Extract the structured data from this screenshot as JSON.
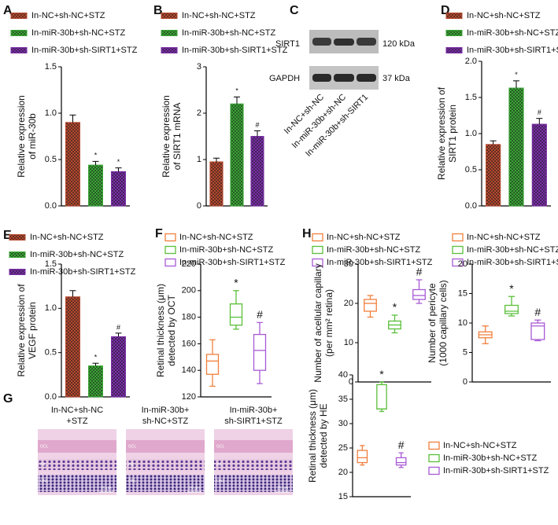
{
  "chart_data": [
    {
      "type": "bar",
      "panel": "A",
      "ylabel": [
        "Relative expression",
        "of miR-30b"
      ],
      "ylim": [
        0,
        1.5
      ],
      "yticks": [
        {
          "value": 0,
          "label": "0.0"
        },
        0.5,
        {
          "value": 1,
          "label": "1.0"
        },
        1.5
      ],
      "series": [
        {
          "name": "In-NC+sh-NC+STZ",
          "color": "#b5492f",
          "values": [
            0.9
          ],
          "errors": [
            0.08
          ]
        },
        {
          "name": "In-miR-30b+sh-NC+STZ",
          "color": "#3aa635",
          "values": [
            0.44
          ],
          "errors": [
            0.04
          ],
          "annotation": "*"
        },
        {
          "name": "In-miR-30b+sh-SIRT1+STZ",
          "color": "#7a2ea8",
          "values": [
            0.37
          ],
          "errors": [
            0.04
          ],
          "annotation": "*"
        }
      ]
    },
    {
      "type": "bar",
      "panel": "B",
      "ylabel": [
        "Relative expression",
        "of SIRT1 mRNA"
      ],
      "ylim": [
        0,
        3
      ],
      "yticks": [
        0,
        1,
        2,
        3
      ],
      "series": [
        {
          "name": "In-NC+sh-NC+STZ",
          "color": "#b5492f",
          "values": [
            0.95
          ],
          "errors": [
            0.08
          ]
        },
        {
          "name": "In-miR-30b+sh-NC+STZ",
          "color": "#3aa635",
          "values": [
            2.2
          ],
          "errors": [
            0.15
          ],
          "annotation": "*"
        },
        {
          "name": "In-miR-30b+sh-SIRT1+STZ",
          "color": "#7a2ea8",
          "values": [
            1.5
          ],
          "errors": [
            0.12
          ],
          "annotation": "#"
        }
      ]
    },
    {
      "type": "bar",
      "panel": "D",
      "ylabel": [
        "Relative expression of",
        "SIRT1 protein"
      ],
      "ylim": [
        0,
        2
      ],
      "yticks": [
        {
          "value": 0,
          "label": "0.0"
        },
        0.5,
        {
          "value": 1,
          "label": "1.0"
        },
        1.5,
        {
          "value": 2,
          "label": "2.0"
        }
      ],
      "series": [
        {
          "name": "In-NC+sh-NC+STZ",
          "color": "#b5492f",
          "values": [
            0.85
          ],
          "errors": [
            0.05
          ]
        },
        {
          "name": "In-miR-30b+sh-NC+STZ",
          "color": "#3aa635",
          "values": [
            1.63
          ],
          "errors": [
            0.1
          ],
          "annotation": "*"
        },
        {
          "name": "In-miR-30b+sh-SIRT1+STZ",
          "color": "#7a2ea8",
          "values": [
            1.13
          ],
          "errors": [
            0.08
          ],
          "annotation": "#"
        }
      ]
    },
    {
      "type": "bar",
      "panel": "E",
      "ylabel": [
        "Relative expression of",
        "VEGF protein"
      ],
      "ylim": [
        0,
        1.5
      ],
      "yticks": [
        {
          "value": 0,
          "label": "0.0"
        },
        0.5,
        {
          "value": 1,
          "label": "1.0"
        },
        1.5
      ],
      "series": [
        {
          "name": "In-NC+sh-NC+STZ",
          "color": "#b5492f",
          "values": [
            1.13
          ],
          "errors": [
            0.07
          ]
        },
        {
          "name": "In-miR-30b+sh-NC+STZ",
          "color": "#3aa635",
          "values": [
            0.35
          ],
          "errors": [
            0.03
          ],
          "annotation": "*"
        },
        {
          "name": "In-miR-30b+sh-SIRT1+STZ",
          "color": "#7a2ea8",
          "values": [
            0.68
          ],
          "errors": [
            0.04
          ],
          "annotation": "#"
        }
      ]
    },
    {
      "type": "box",
      "panel": "F",
      "ylabel": [
        "Retinal thickness (μm)",
        "detected by OCT"
      ],
      "ylim": [
        120,
        220
      ],
      "yticks": [
        120,
        140,
        160,
        180,
        200,
        220
      ],
      "series": [
        {
          "name": "In-NC+sh-NC+STZ",
          "color": "#f07f3c",
          "whisker_low": 128,
          "q1": 137,
          "median": 147,
          "q3": 152,
          "whisker_high": 163
        },
        {
          "name": "In-miR-30b+sh-NC+STZ",
          "color": "#5bbf3a",
          "whisker_low": 171,
          "q1": 174,
          "median": 180,
          "q3": 190,
          "whisker_high": 200,
          "annotation": "*"
        },
        {
          "name": "In-miR-30b+sh-SIRT1+STZ",
          "color": "#a85ad6",
          "whisker_low": 130,
          "q1": 140,
          "median": 155,
          "q3": 167,
          "whisker_high": 176,
          "annotation": "#"
        }
      ]
    },
    {
      "type": "box",
      "panel": "H",
      "ylabel": [
        "Number of acellular capillary",
        "(per mm² retina)"
      ],
      "ylim": [
        0,
        30
      ],
      "yticks": [
        0,
        10,
        20,
        30
      ],
      "series": [
        {
          "name": "In-NC+sh-NC+STZ",
          "color": "#f07f3c",
          "whisker_low": 16.5,
          "q1": 18,
          "median": 20,
          "q3": 21,
          "whisker_high": 22
        },
        {
          "name": "In-miR-30b+sh-NC+STZ",
          "color": "#5bbf3a",
          "whisker_low": 12.5,
          "q1": 13.5,
          "median": 14.5,
          "q3": 15.5,
          "whisker_high": 17,
          "annotation": "*"
        },
        {
          "name": "In-miR-30b+sh-SIRT1+STZ",
          "color": "#a85ad6",
          "whisker_low": 20,
          "q1": 21,
          "median": 22,
          "q3": 23.5,
          "whisker_high": 26,
          "annotation": "#"
        }
      ]
    },
    {
      "type": "box",
      "ylabel": [
        "Number of pericyte",
        "(1000 capillary cells)"
      ],
      "ylim": [
        0,
        20
      ],
      "yticks": [
        0,
        5,
        10,
        15,
        20
      ],
      "series": [
        {
          "name": "In-NC+sh-NC+STZ",
          "color": "#f07f3c",
          "whisker_low": 6.5,
          "q1": 7.5,
          "median": 8,
          "q3": 8.5,
          "whisker_high": 9.5
        },
        {
          "name": "In-miR-30b+sh-NC+STZ",
          "color": "#5bbf3a",
          "whisker_low": 11.2,
          "q1": 11.6,
          "median": 12,
          "q3": 13,
          "whisker_high": 14.5,
          "annotation": "*"
        },
        {
          "name": "In-miR-30b+sh-SIRT1+STZ",
          "color": "#a85ad6",
          "whisker_low": 7,
          "q1": 7.2,
          "median": 9.5,
          "q3": 10,
          "whisker_high": 10.5,
          "annotation": "#"
        }
      ]
    },
    {
      "type": "box",
      "ylabel": [
        "Retinal thickness (μm)",
        "detected by HE"
      ],
      "ylim": [
        15,
        40
      ],
      "yticks": [
        15,
        20,
        25,
        30,
        35,
        40
      ],
      "series": [
        {
          "name": "In-NC+sh-NC+STZ",
          "color": "#f07f3c",
          "whisker_low": 21.5,
          "q1": 22,
          "median": 23,
          "q3": 24.5,
          "whisker_high": 25.5
        },
        {
          "name": "In-miR-30b+sh-NC+STZ",
          "color": "#5bbf3a",
          "whisker_low": 32.5,
          "q1": 33,
          "median": 33,
          "q3": 38,
          "whisker_high": 38.5,
          "annotation": "*"
        },
        {
          "name": "In-miR-30b+sh-SIRT1+STZ",
          "color": "#a85ad6",
          "whisker_low": 21,
          "q1": 21.5,
          "median": 22,
          "q3": 23,
          "whisker_high": 24,
          "annotation": "#"
        }
      ]
    }
  ],
  "blot": {
    "panel": "C",
    "rows": [
      "SIRT1",
      "GAPDH"
    ],
    "sizes": [
      "120 kDa",
      "37 kDa"
    ],
    "lanes": [
      "In-NC+sh-NC",
      "In-miR-30b+sh-NC",
      "In-miR-30b+sh-SIRT1"
    ]
  },
  "histology": {
    "panel": "G",
    "columns": [
      [
        "In-NC+sh-NC",
        "+STZ"
      ],
      [
        "In-miR-30b+",
        "sh-NC+STZ"
      ],
      [
        "In-miR-30b+",
        "sh-SIRT1+STZ"
      ]
    ],
    "layers": [
      "GCL",
      "INL",
      "ONL"
    ],
    "scale": "25 μm"
  }
}
